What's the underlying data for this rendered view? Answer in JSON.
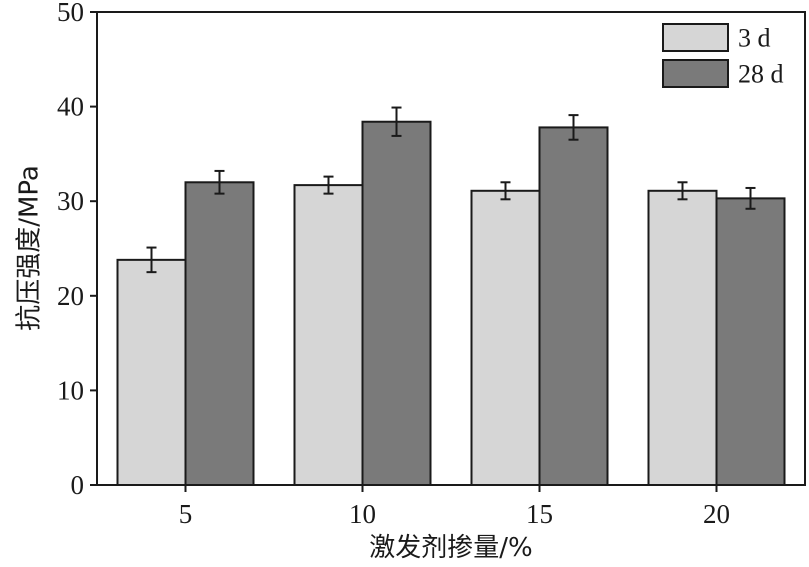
{
  "chart_data": {
    "type": "bar",
    "title": "",
    "xlabel": "激发剂掺量/%",
    "ylabel": "抗压强度/MPa",
    "categories": [
      "5",
      "10",
      "15",
      "20"
    ],
    "ylim": [
      0,
      50
    ],
    "yticks": [
      "0",
      "10",
      "20",
      "30",
      "40",
      "50"
    ],
    "grid": false,
    "legend_position": "top-right",
    "series": [
      {
        "name": "3 d",
        "color": "#d6d6d6",
        "values": [
          23.8,
          31.7,
          31.1,
          31.1
        ],
        "errors": [
          1.3,
          0.9,
          0.9,
          0.9
        ]
      },
      {
        "name": "28 d",
        "color": "#7a7a7a",
        "values": [
          32.0,
          38.4,
          37.8,
          30.3
        ],
        "errors": [
          1.2,
          1.5,
          1.3,
          1.1
        ]
      }
    ]
  }
}
